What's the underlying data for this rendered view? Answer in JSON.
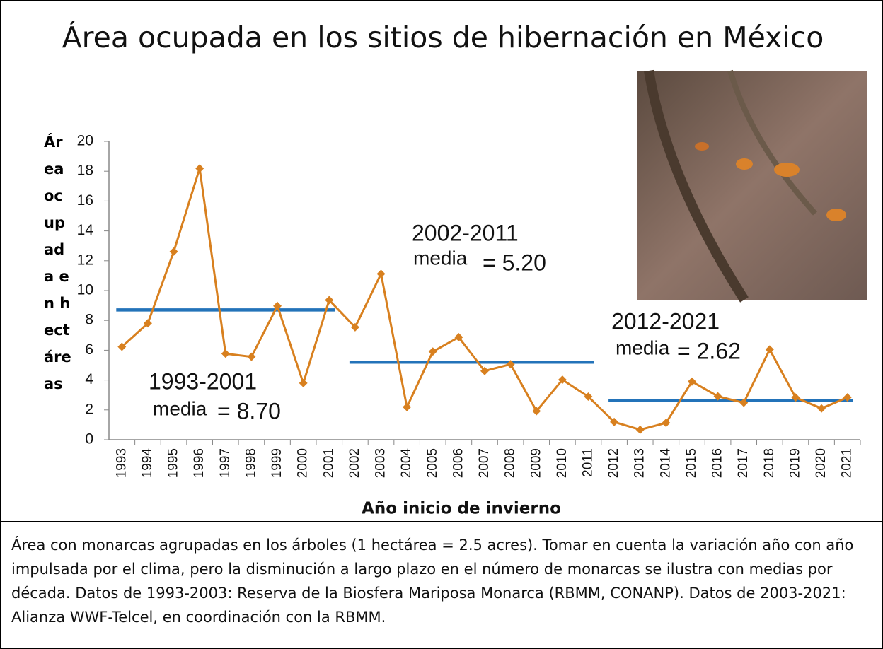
{
  "chart_data": {
    "type": "line",
    "title": "Área ocupada en los sitios de hibernación en México",
    "y_label": "Área ocupada en hectáreas",
    "x_label": "Año inicio de invierno",
    "categories": [
      "1993",
      "1994",
      "1995",
      "1996",
      "1997",
      "1998",
      "1999",
      "2000",
      "2001",
      "2002",
      "2003",
      "2004",
      "2005",
      "2006",
      "2007",
      "2008",
      "2009",
      "2010",
      "2011",
      "2012",
      "2013",
      "2014",
      "2015",
      "2016",
      "2017",
      "2018",
      "2019",
      "2020",
      "2021"
    ],
    "values": [
      6.23,
      7.81,
      12.61,
      18.19,
      5.77,
      5.56,
      8.97,
      3.8,
      9.36,
      7.54,
      11.12,
      2.19,
      5.91,
      6.87,
      4.61,
      5.06,
      1.92,
      4.02,
      2.89,
      1.19,
      0.67,
      1.13,
      3.9,
      2.91,
      2.48,
      6.05,
      2.83,
      2.1,
      2.84
    ],
    "color": "#d8801f",
    "ylim": [
      0,
      20
    ],
    "yticks": [
      0,
      2,
      4,
      6,
      8,
      10,
      12,
      14,
      16,
      18,
      20
    ],
    "means": [
      {
        "period": "1993-2001",
        "label": "media",
        "value": 8.7,
        "value_label": "= 8.70"
      },
      {
        "period": "2002-2011",
        "label": "media",
        "value": 5.2,
        "value_label": "= 5.20"
      },
      {
        "period": "2012-2021",
        "label": "media",
        "value": 2.62,
        "value_label": "= 2.62"
      }
    ],
    "mean_color": "#2373b9",
    "caption": "Área con monarcas agrupadas en los árboles (1 hectárea = 2.5 acres). Tomar en cuenta la variación año con año impulsada por el clima, pero la disminución a largo plazo en el número de monarcas se ilustra con medias por década. Datos de 1993-2003: Reserva de la Biosfera Mariposa Monarca (RBMM, CONANP). Datos de 2003-2021: Alianza WWF-Telcel, en coordinación con la RBMM."
  }
}
